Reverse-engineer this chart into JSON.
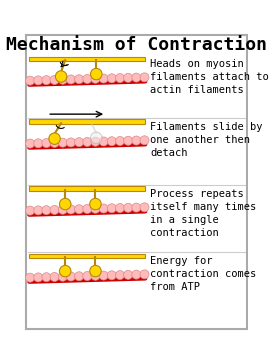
{
  "title": "Mechanism of Contraction",
  "title_fontsize": 13,
  "background_color": "#ffffff",
  "border_color": "#aaaaaa",
  "panel_descriptions": [
    "Heads on myosin\nfilaments attach to\nactin filaments",
    "Filaments slide by\none another then\ndetach",
    "Process repeats\nitself many times\nin a single\ncontraction",
    "Energy for\ncontraction comes\nfrom ATP"
  ],
  "yellow_color": "#FFD700",
  "yellow_dark": "#B8860B",
  "red_color": "#CC0000",
  "actin_bead_color": "#FFBBBB",
  "actin_bead_edge": "#DD8888",
  "text_color": "#000000",
  "text_fontsize": 7.5
}
